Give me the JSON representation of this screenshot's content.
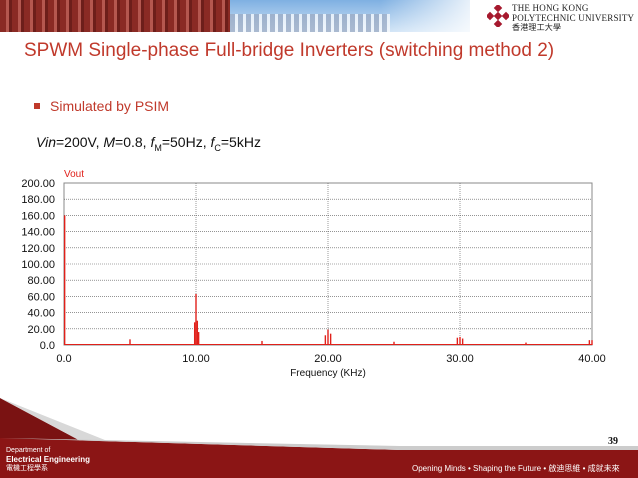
{
  "university": {
    "name_line1": "THE HONG KONG",
    "name_line2": "POLYTECHNIC UNIVERSITY",
    "name_cn": "香港理工大學"
  },
  "slide": {
    "title": "SPWM Single-phase Full-bridge Inverters (switching method 2)",
    "bullet": "Simulated by PSIM",
    "params": {
      "vin_label": "Vin",
      "vin_value": "=200V, ",
      "m_label": "M",
      "m_value": "=0.8, ",
      "fm_label": "f",
      "fm_sub": "M",
      "fm_value": "=50Hz, ",
      "fc_label": "f",
      "fc_sub": "C",
      "fc_value": "=5kHz"
    },
    "page_number": "39"
  },
  "footer": {
    "dept_line1": "Department of",
    "dept_line2": "Electrical Engineering",
    "dept_cn": "電機工程學系",
    "slogan": "Opening Minds • Shaping the Future • 啟迪思維 • 成就未來"
  },
  "colors": {
    "accent": "#c0392b",
    "trace": "#e0201a",
    "footer": "#7a1212"
  },
  "chart_data": {
    "type": "line",
    "series": [
      {
        "name": "Vout",
        "points": [
          [
            0.05,
            160
          ],
          [
            5.0,
            7
          ],
          [
            9.9,
            28
          ],
          [
            10.0,
            63
          ],
          [
            10.1,
            30
          ],
          [
            10.2,
            16
          ],
          [
            15.0,
            5
          ],
          [
            19.8,
            12
          ],
          [
            20.0,
            19
          ],
          [
            20.2,
            14
          ],
          [
            25.0,
            4
          ],
          [
            29.8,
            9
          ],
          [
            30.0,
            10
          ],
          [
            30.2,
            8
          ],
          [
            35.0,
            3
          ],
          [
            39.8,
            6
          ],
          [
            40.0,
            6
          ]
        ]
      }
    ],
    "xlabel": "Frequency (KHz)",
    "xlim": [
      0,
      40
    ],
    "ylim": [
      0,
      200
    ],
    "xticks": [
      "0.0",
      "10.00",
      "20.00",
      "30.00",
      "40.00"
    ],
    "yticks": [
      "0.0",
      "20.00",
      "40.00",
      "60.00",
      "80.00",
      "100.00",
      "120.00",
      "140.00",
      "160.00",
      "180.00",
      "200.00"
    ],
    "grid": true,
    "legend": "top-left"
  }
}
